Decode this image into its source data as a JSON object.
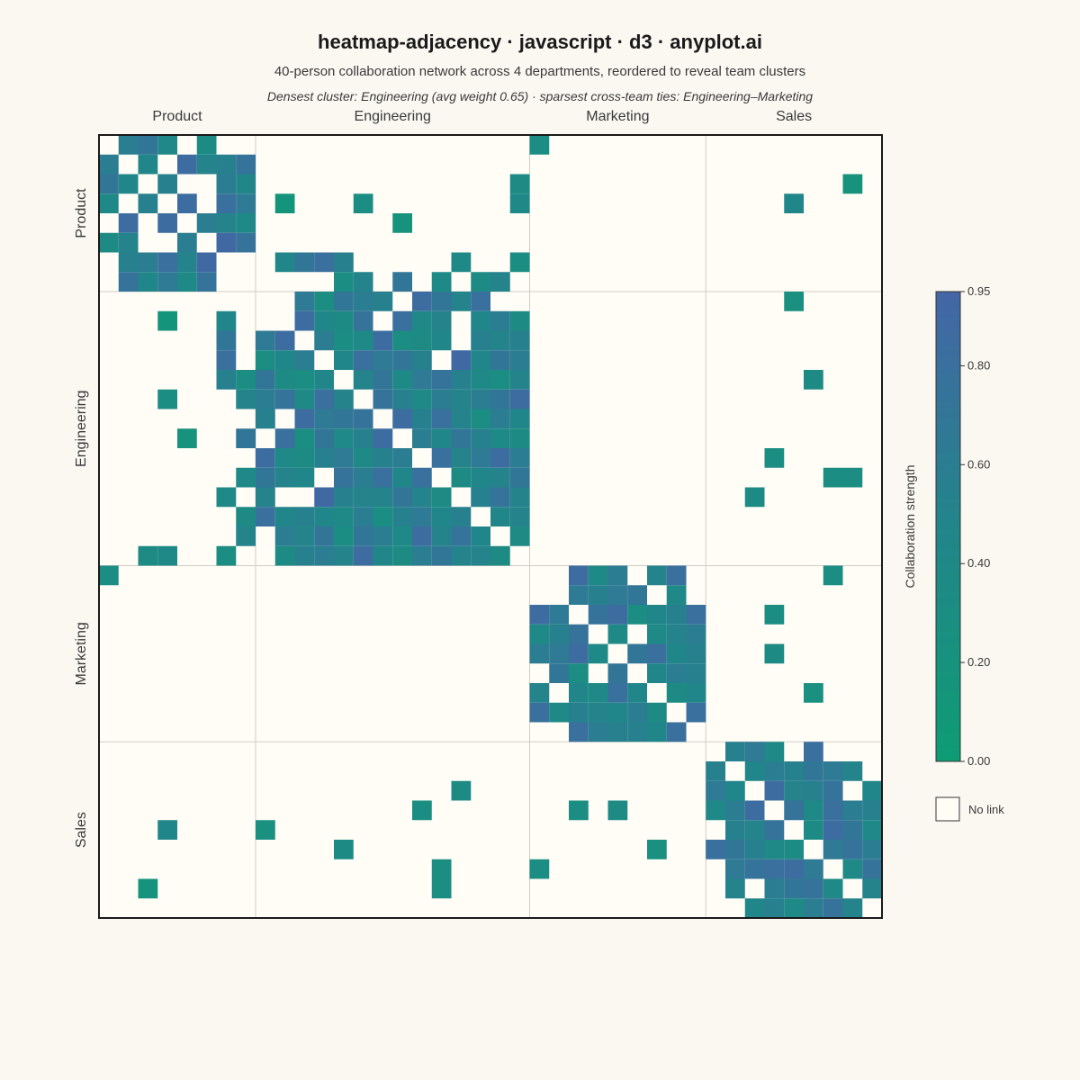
{
  "chart_data": {
    "type": "heatmap",
    "title": "heatmap-adjacency · javascript · d3 · anyplot.ai",
    "subtitle": "40-person collaboration network across 4 departments, reordered to reveal team clusters",
    "note": "Densest cluster: Engineering (avg weight 0.65) · sparsest cross-team ties: Engineering–Marketing",
    "n": 40,
    "groups": [
      {
        "name": "Product",
        "start": 0,
        "size": 8
      },
      {
        "name": "Engineering",
        "start": 8,
        "size": 14
      },
      {
        "name": "Marketing",
        "start": 22,
        "size": 9
      },
      {
        "name": "Sales",
        "start": 31,
        "size": 9
      }
    ],
    "color_scale": {
      "min": 0.0,
      "max": 0.95,
      "low_color": "#0E9C74",
      "mid_color": "#22858A",
      "high_color": "#4466A6"
    },
    "colorbar": {
      "title": "Collaboration strength",
      "ticks": [
        "0.00",
        "0.20",
        "0.40",
        "0.60",
        "0.80",
        "0.95"
      ],
      "tick_values": [
        0,
        0.2,
        0.4,
        0.6,
        0.8,
        0.95
      ]
    },
    "no_link_label": "No link",
    "links": [
      [
        0,
        1,
        0.6
      ],
      [
        0,
        2,
        0.7
      ],
      [
        0,
        3,
        0.4
      ],
      [
        0,
        5,
        0.35
      ],
      [
        0,
        22,
        0.3
      ],
      [
        1,
        2,
        0.45
      ],
      [
        1,
        4,
        0.85
      ],
      [
        1,
        5,
        0.5
      ],
      [
        1,
        6,
        0.55
      ],
      [
        1,
        7,
        0.75
      ],
      [
        2,
        3,
        0.55
      ],
      [
        2,
        6,
        0.6
      ],
      [
        2,
        7,
        0.45
      ],
      [
        2,
        21,
        0.35
      ],
      [
        2,
        38,
        0.2
      ],
      [
        3,
        4,
        0.85
      ],
      [
        3,
        6,
        0.8
      ],
      [
        3,
        7,
        0.65
      ],
      [
        3,
        9,
        0.15
      ],
      [
        3,
        13,
        0.3
      ],
      [
        3,
        21,
        0.4
      ],
      [
        3,
        35,
        0.45
      ],
      [
        4,
        5,
        0.6
      ],
      [
        4,
        6,
        0.5
      ],
      [
        4,
        7,
        0.4
      ],
      [
        4,
        15,
        0.2
      ],
      [
        5,
        6,
        0.9
      ],
      [
        5,
        7,
        0.75
      ],
      [
        6,
        9,
        0.45
      ],
      [
        6,
        10,
        0.7
      ],
      [
        6,
        11,
        0.8
      ],
      [
        6,
        12,
        0.55
      ],
      [
        6,
        18,
        0.4
      ],
      [
        6,
        21,
        0.3
      ],
      [
        7,
        12,
        0.3
      ],
      [
        7,
        13,
        0.5
      ],
      [
        7,
        15,
        0.7
      ],
      [
        7,
        17,
        0.4
      ],
      [
        7,
        19,
        0.35
      ],
      [
        7,
        20,
        0.5
      ],
      [
        8,
        10,
        0.65
      ],
      [
        8,
        11,
        0.3
      ],
      [
        8,
        12,
        0.7
      ],
      [
        8,
        13,
        0.6
      ],
      [
        8,
        14,
        0.55
      ],
      [
        8,
        16,
        0.85
      ],
      [
        8,
        17,
        0.7
      ],
      [
        8,
        18,
        0.5
      ],
      [
        8,
        19,
        0.8
      ],
      [
        8,
        35,
        0.25
      ],
      [
        9,
        10,
        0.85
      ],
      [
        9,
        11,
        0.45
      ],
      [
        9,
        12,
        0.35
      ],
      [
        9,
        13,
        0.75
      ],
      [
        9,
        15,
        0.8
      ],
      [
        9,
        16,
        0.4
      ],
      [
        9,
        17,
        0.5
      ],
      [
        9,
        19,
        0.45
      ],
      [
        9,
        20,
        0.6
      ],
      [
        9,
        21,
        0.35
      ],
      [
        10,
        11,
        0.6
      ],
      [
        10,
        12,
        0.3
      ],
      [
        10,
        13,
        0.4
      ],
      [
        10,
        14,
        0.85
      ],
      [
        10,
        15,
        0.3
      ],
      [
        10,
        16,
        0.35
      ],
      [
        10,
        17,
        0.45
      ],
      [
        10,
        19,
        0.55
      ],
      [
        10,
        20,
        0.5
      ],
      [
        10,
        21,
        0.55
      ],
      [
        11,
        12,
        0.45
      ],
      [
        11,
        13,
        0.8
      ],
      [
        11,
        14,
        0.65
      ],
      [
        11,
        15,
        0.7
      ],
      [
        11,
        16,
        0.55
      ],
      [
        11,
        18,
        0.9
      ],
      [
        11,
        19,
        0.45
      ],
      [
        11,
        20,
        0.7
      ],
      [
        11,
        21,
        0.6
      ],
      [
        12,
        13,
        0.5
      ],
      [
        12,
        14,
        0.7
      ],
      [
        12,
        15,
        0.4
      ],
      [
        12,
        16,
        0.65
      ],
      [
        12,
        17,
        0.75
      ],
      [
        12,
        18,
        0.55
      ],
      [
        12,
        19,
        0.4
      ],
      [
        12,
        20,
        0.3
      ],
      [
        12,
        21,
        0.5
      ],
      [
        12,
        36,
        0.35
      ],
      [
        13,
        14,
        0.75
      ],
      [
        13,
        15,
        0.55
      ],
      [
        13,
        16,
        0.4
      ],
      [
        13,
        17,
        0.6
      ],
      [
        13,
        18,
        0.5
      ],
      [
        13,
        19,
        0.6
      ],
      [
        13,
        20,
        0.7
      ],
      [
        13,
        21,
        0.85
      ],
      [
        14,
        15,
        0.85
      ],
      [
        14,
        16,
        0.55
      ],
      [
        14,
        17,
        0.8
      ],
      [
        14,
        18,
        0.5
      ],
      [
        14,
        19,
        0.3
      ],
      [
        14,
        20,
        0.6
      ],
      [
        14,
        21,
        0.45
      ],
      [
        15,
        16,
        0.6
      ],
      [
        15,
        17,
        0.45
      ],
      [
        15,
        18,
        0.7
      ],
      [
        15,
        19,
        0.55
      ],
      [
        15,
        20,
        0.4
      ],
      [
        15,
        21,
        0.35
      ],
      [
        16,
        17,
        0.8
      ],
      [
        16,
        18,
        0.5
      ],
      [
        16,
        19,
        0.65
      ],
      [
        16,
        20,
        0.85
      ],
      [
        16,
        21,
        0.6
      ],
      [
        16,
        34,
        0.3
      ],
      [
        17,
        18,
        0.35
      ],
      [
        17,
        19,
        0.45
      ],
      [
        17,
        20,
        0.5
      ],
      [
        17,
        21,
        0.7
      ],
      [
        17,
        37,
        0.3
      ],
      [
        17,
        38,
        0.3
      ],
      [
        18,
        19,
        0.55
      ],
      [
        18,
        20,
        0.75
      ],
      [
        18,
        21,
        0.5
      ],
      [
        18,
        33,
        0.35
      ],
      [
        19,
        20,
        0.45
      ],
      [
        19,
        21,
        0.5
      ],
      [
        20,
        21,
        0.35
      ],
      [
        22,
        24,
        0.85
      ],
      [
        22,
        25,
        0.4
      ],
      [
        22,
        26,
        0.6
      ],
      [
        22,
        28,
        0.5
      ],
      [
        22,
        29,
        0.8
      ],
      [
        22,
        37,
        0.3
      ],
      [
        23,
        24,
        0.65
      ],
      [
        23,
        25,
        0.55
      ],
      [
        23,
        26,
        0.65
      ],
      [
        23,
        27,
        0.7
      ],
      [
        23,
        29,
        0.4
      ],
      [
        24,
        25,
        0.75
      ],
      [
        24,
        26,
        0.85
      ],
      [
        24,
        27,
        0.3
      ],
      [
        24,
        28,
        0.45
      ],
      [
        24,
        29,
        0.55
      ],
      [
        24,
        30,
        0.8
      ],
      [
        24,
        34,
        0.3
      ],
      [
        25,
        26,
        0.4
      ],
      [
        25,
        28,
        0.4
      ],
      [
        25,
        29,
        0.5
      ],
      [
        25,
        30,
        0.6
      ],
      [
        26,
        27,
        0.7
      ],
      [
        26,
        28,
        0.8
      ],
      [
        26,
        29,
        0.45
      ],
      [
        26,
        30,
        0.55
      ],
      [
        26,
        34,
        0.35
      ],
      [
        27,
        28,
        0.45
      ],
      [
        27,
        29,
        0.6
      ],
      [
        27,
        30,
        0.55
      ],
      [
        28,
        29,
        0.35
      ],
      [
        28,
        30,
        0.45
      ],
      [
        28,
        36,
        0.25
      ],
      [
        29,
        30,
        0.8
      ],
      [
        31,
        32,
        0.55
      ],
      [
        31,
        33,
        0.65
      ],
      [
        31,
        34,
        0.4
      ],
      [
        31,
        36,
        0.8
      ],
      [
        32,
        33,
        0.45
      ],
      [
        32,
        34,
        0.6
      ],
      [
        32,
        35,
        0.55
      ],
      [
        32,
        36,
        0.7
      ],
      [
        32,
        37,
        0.65
      ],
      [
        32,
        38,
        0.5
      ],
      [
        33,
        34,
        0.85
      ],
      [
        33,
        35,
        0.5
      ],
      [
        33,
        36,
        0.55
      ],
      [
        33,
        37,
        0.75
      ],
      [
        33,
        39,
        0.45
      ],
      [
        34,
        35,
        0.75
      ],
      [
        34,
        36,
        0.4
      ],
      [
        34,
        37,
        0.8
      ],
      [
        34,
        38,
        0.6
      ],
      [
        34,
        39,
        0.55
      ],
      [
        35,
        36,
        0.35
      ],
      [
        35,
        37,
        0.85
      ],
      [
        35,
        38,
        0.7
      ],
      [
        35,
        39,
        0.4
      ],
      [
        36,
        37,
        0.65
      ],
      [
        36,
        38,
        0.75
      ],
      [
        36,
        39,
        0.6
      ],
      [
        37,
        38,
        0.4
      ],
      [
        37,
        39,
        0.75
      ],
      [
        38,
        39,
        0.5
      ]
    ]
  }
}
